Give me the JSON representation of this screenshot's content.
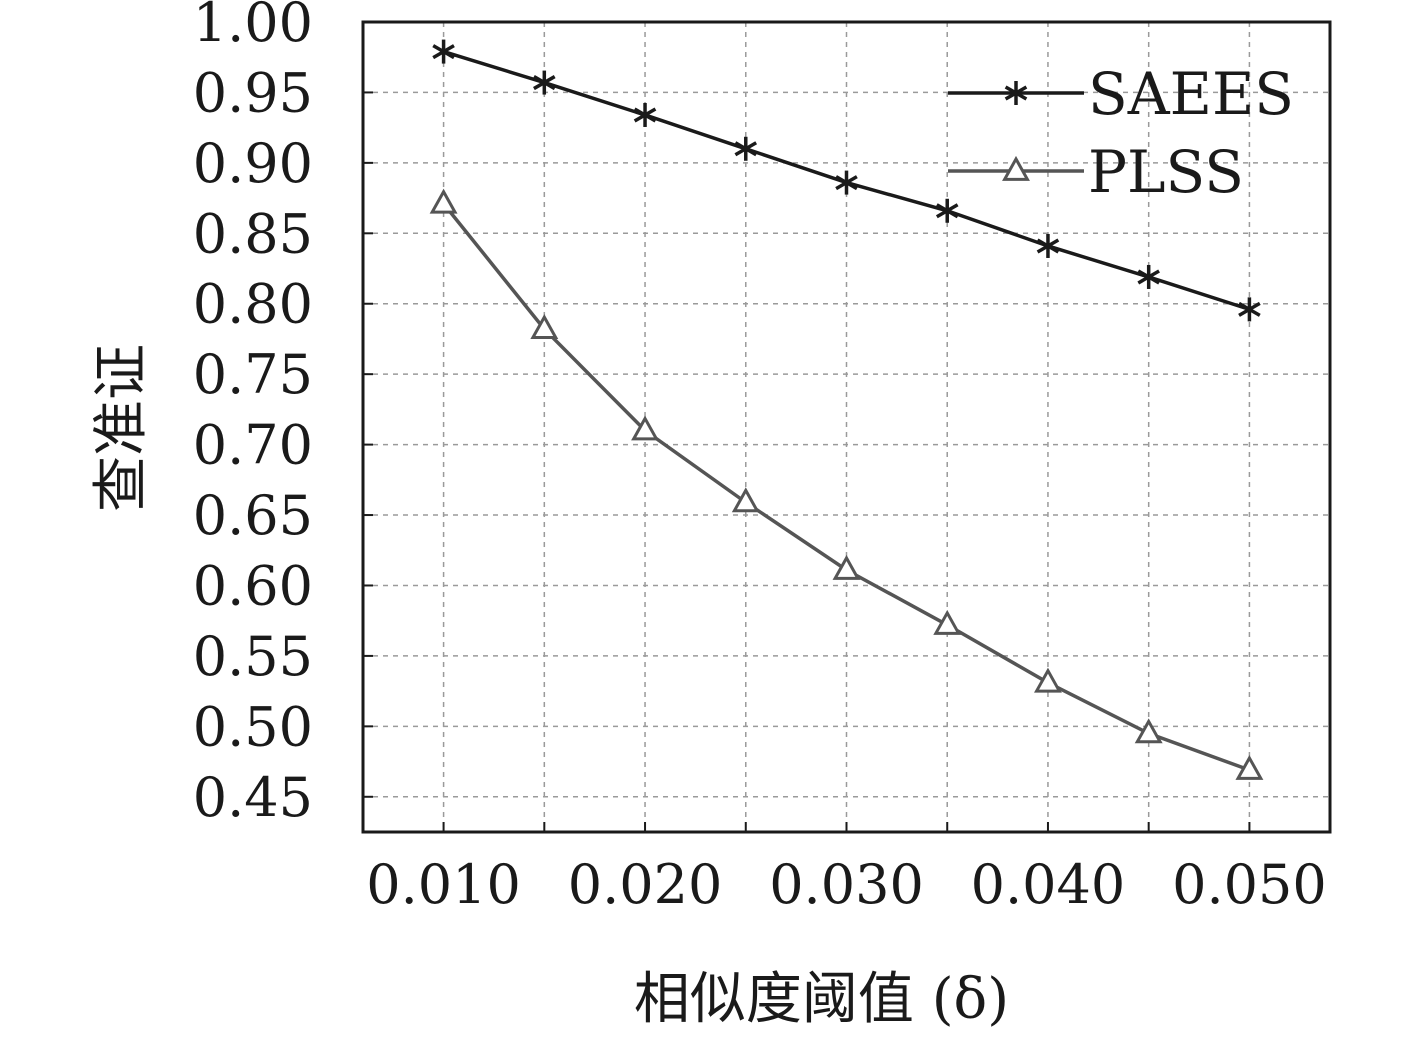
{
  "chart_data": {
    "type": "line",
    "title": "",
    "xlabel": "相似度阈值 (δ)",
    "ylabel": "查准证",
    "xlim": [
      0.006,
      0.054
    ],
    "ylim": [
      0.425,
      1.0
    ],
    "xticks": [
      0.01,
      0.02,
      0.03,
      0.04,
      0.05
    ],
    "xtick_labels": [
      "0.010",
      "0.020",
      "0.030",
      "0.040",
      "0.050"
    ],
    "yticks": [
      0.45,
      0.5,
      0.55,
      0.6,
      0.65,
      0.7,
      0.75,
      0.8,
      0.85,
      0.9,
      0.95,
      1.0
    ],
    "ytick_labels": [
      "0.45",
      "0.50",
      "0.55",
      "0.60",
      "0.65",
      "0.70",
      "0.75",
      "0.80",
      "0.85",
      "0.90",
      "0.95",
      "1.00"
    ],
    "x": [
      0.01,
      0.015,
      0.02,
      0.025,
      0.03,
      0.035,
      0.04,
      0.045,
      0.05
    ],
    "series": [
      {
        "name": "SAEES",
        "marker": "asterisk",
        "color": "#1a1a1a",
        "values": [
          0.979,
          0.957,
          0.934,
          0.91,
          0.886,
          0.866,
          0.841,
          0.819,
          0.796
        ]
      },
      {
        "name": "PLSS",
        "marker": "triangle",
        "color": "#555555",
        "values": [
          0.871,
          0.782,
          0.71,
          0.659,
          0.611,
          0.572,
          0.531,
          0.495,
          0.469
        ]
      }
    ],
    "grid": true,
    "legend_position": "top-right"
  }
}
